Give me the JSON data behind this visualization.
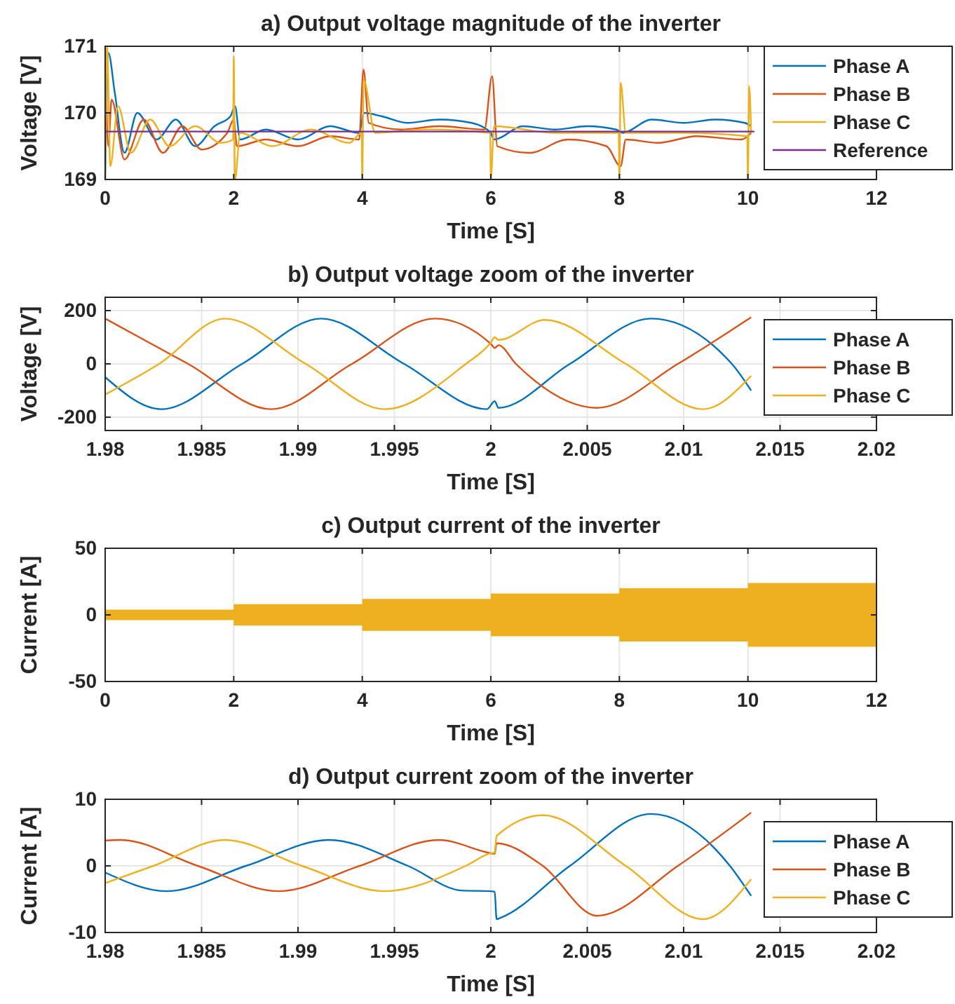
{
  "chart_data": [
    {
      "type": "line",
      "title": "a) Output voltage magnitude of the inverter",
      "xlabel": "Time [S]",
      "ylabel": "Voltage [V]",
      "xlim": [
        0,
        12
      ],
      "xticks": [
        0,
        2,
        4,
        6,
        8,
        10,
        12
      ],
      "ylim": [
        169,
        171
      ],
      "yticks": [
        169,
        170,
        171
      ],
      "grid": true,
      "legend": "top right",
      "series": [
        {
          "name": "Phase A",
          "color": "#0072bd",
          "x": [
            0,
            0.05,
            0.15,
            0.3,
            0.5,
            0.8,
            1.1,
            1.4,
            1.7,
            1.95,
            2.02,
            2.1,
            2.5,
            3.0,
            3.5,
            3.95,
            4.03,
            4.3,
            4.7,
            5.2,
            5.7,
            6.0,
            6.05,
            6.5,
            7.0,
            7.5,
            7.95,
            8.05,
            8.5,
            9.0,
            9.5,
            9.95,
            10.05
          ],
          "values": [
            169.0,
            170.9,
            170.3,
            169.4,
            170.0,
            169.6,
            169.9,
            169.5,
            169.8,
            169.95,
            170.1,
            169.6,
            169.75,
            169.6,
            169.8,
            169.7,
            170.0,
            169.95,
            169.85,
            169.9,
            169.85,
            169.7,
            169.6,
            169.8,
            169.75,
            169.8,
            169.75,
            169.7,
            169.9,
            169.85,
            169.9,
            169.85,
            169.8
          ]
        },
        {
          "name": "Phase B",
          "color": "#d95319",
          "x": [
            0,
            0.05,
            0.1,
            0.3,
            0.6,
            0.9,
            1.2,
            1.5,
            1.9,
            2.0,
            2.05,
            2.5,
            3.0,
            3.5,
            3.95,
            4.02,
            4.1,
            4.6,
            5.2,
            5.9,
            6.02,
            6.1,
            6.6,
            7.2,
            7.8,
            8.02,
            8.1,
            8.6,
            9.2,
            9.9,
            10.05
          ],
          "values": [
            171.0,
            169.5,
            170.2,
            169.3,
            169.9,
            169.4,
            169.8,
            169.45,
            169.7,
            169.9,
            169.5,
            169.6,
            169.5,
            169.65,
            169.6,
            170.65,
            169.85,
            169.75,
            169.8,
            169.75,
            170.55,
            169.5,
            169.4,
            169.6,
            169.5,
            169.2,
            169.6,
            169.55,
            169.65,
            169.6,
            169.7
          ]
        },
        {
          "name": "Phase C",
          "color": "#edb120",
          "x": [
            0,
            0.03,
            0.08,
            0.2,
            0.4,
            0.7,
            1.0,
            1.4,
            1.8,
            1.99,
            2.0,
            2.02,
            2.1,
            2.6,
            3.2,
            3.8,
            3.99,
            4.0,
            4.02,
            4.2,
            5.0,
            5.99,
            6.0,
            6.05,
            7.0,
            7.99,
            8.0,
            8.02,
            8.1,
            9.0,
            9.99,
            10.0,
            10.02,
            10.05
          ],
          "values": [
            169.0,
            171.0,
            169.2,
            170.1,
            169.4,
            169.9,
            169.5,
            169.8,
            169.55,
            169.6,
            170.85,
            169.0,
            169.7,
            169.5,
            169.75,
            169.55,
            169.7,
            169.0,
            170.5,
            169.7,
            169.75,
            169.7,
            169.0,
            169.8,
            169.7,
            169.7,
            169.0,
            170.45,
            169.7,
            169.7,
            169.65,
            169.0,
            170.4,
            169.7
          ]
        },
        {
          "name": "Reference",
          "color": "#7e2f8e",
          "x": [
            0,
            10.1
          ],
          "values": [
            169.72,
            169.72
          ]
        }
      ]
    },
    {
      "type": "line",
      "title": "b) Output voltage zoom of the inverter",
      "xlabel": "Time [S]",
      "ylabel": "Voltage [V]",
      "xlim": [
        1.98,
        2.02
      ],
      "xticks": [
        1.98,
        1.985,
        1.99,
        1.995,
        2,
        2.005,
        2.01,
        2.015,
        2.02
      ],
      "ylim": [
        -250,
        250
      ],
      "yticks": [
        -200,
        0,
        200
      ],
      "grid": true,
      "legend": "right",
      "series": [
        {
          "name": "Phase A",
          "color": "#0072bd",
          "x": [
            1.98,
            1.9829,
            1.9871,
            1.9912,
            1.9955,
            1.9998,
            2.0002,
            2.0004,
            2.0041,
            2.0083,
            2.0125,
            2.0135
          ],
          "values": [
            -50,
            -170,
            0,
            170,
            0,
            -170,
            -140,
            -165,
            0,
            170,
            0,
            -100
          ]
        },
        {
          "name": "Phase B",
          "color": "#d95319",
          "x": [
            1.98,
            1.9843,
            1.9886,
            1.9928,
            1.9971,
            2.0,
            2.0002,
            2.0004,
            2.0013,
            2.0055,
            2.0097,
            2.0135
          ],
          "values": [
            170,
            0,
            -170,
            0,
            170,
            75,
            60,
            70,
            0,
            -165,
            0,
            175
          ]
        },
        {
          "name": "Phase C",
          "color": "#edb120",
          "x": [
            1.98,
            1.9828,
            1.9862,
            1.9904,
            1.9945,
            1.9987,
            2.0,
            2.0002,
            2.0004,
            2.0028,
            2.007,
            2.011,
            2.0135
          ],
          "values": [
            -115,
            0,
            170,
            0,
            -170,
            0,
            80,
            100,
            90,
            165,
            0,
            -170,
            -45
          ]
        }
      ]
    },
    {
      "type": "area",
      "title": "c) Output current of the inverter",
      "xlabel": "Time [S]",
      "ylabel": "Current [A]",
      "xlim": [
        0,
        12
      ],
      "xticks": [
        0,
        2,
        4,
        6,
        8,
        10,
        12
      ],
      "ylim": [
        -50,
        50
      ],
      "yticks": [
        -50,
        0,
        50
      ],
      "grid": true,
      "series": [
        {
          "color": "#edb120",
          "x": [
            0,
            2,
            2,
            4,
            4,
            6,
            6,
            8,
            8,
            10,
            10,
            12
          ],
          "values": [
            4,
            4,
            8,
            8,
            12,
            12,
            16,
            16,
            20,
            20,
            24,
            24
          ]
        },
        {
          "color": "#edb120",
          "x": [
            0,
            2,
            2,
            4,
            4,
            6,
            6,
            8,
            8,
            10,
            10,
            12
          ],
          "values": [
            -4,
            -4,
            -8,
            -8,
            -12,
            -12,
            -16,
            -16,
            -20,
            -20,
            -24,
            -24
          ]
        }
      ]
    },
    {
      "type": "line",
      "title": "d) Output current zoom of the inverter",
      "xlabel": "Time [S]",
      "ylabel": "Current [A]",
      "xlim": [
        1.98,
        2.02
      ],
      "xticks": [
        1.98,
        1.985,
        1.99,
        1.995,
        2,
        2.005,
        2.01,
        2.015,
        2.02
      ],
      "ylim": [
        -10,
        10
      ],
      "yticks": [
        -10,
        0,
        10
      ],
      "grid": true,
      "legend": "right",
      "series": [
        {
          "name": "Phase A",
          "color": "#0072bd",
          "x": [
            1.98,
            1.9832,
            1.9873,
            1.9916,
            1.9957,
            1.9985,
            2.0,
            2.0002,
            2.0003,
            2.0005,
            2.0041,
            2.0083,
            2.0124,
            2.0135
          ],
          "values": [
            -1,
            -3.8,
            0,
            3.9,
            0,
            -3.7,
            -3.8,
            -3.9,
            -8,
            -7.8,
            0,
            7.8,
            0,
            -4.5
          ]
        },
        {
          "name": "Phase B",
          "color": "#d95319",
          "x": [
            1.98,
            1.9808,
            1.9848,
            1.989,
            1.9932,
            1.9973,
            2.0,
            2.0002,
            2.0003,
            2.0027,
            2.0055,
            2.0097,
            2.0135
          ],
          "values": [
            3.8,
            3.9,
            0,
            -3.8,
            0,
            3.9,
            1.9,
            1.8,
            3.4,
            0,
            -7.5,
            0,
            8.0
          ]
        },
        {
          "name": "Phase C",
          "color": "#edb120",
          "x": [
            1.98,
            1.9825,
            1.9862,
            1.9902,
            1.9945,
            1.9987,
            2.0,
            2.0002,
            2.0003,
            2.0027,
            2.007,
            2.011,
            2.0135
          ],
          "values": [
            -2.6,
            0,
            3.9,
            0,
            -3.8,
            0,
            1.9,
            2.0,
            4.5,
            7.6,
            0,
            -8.0,
            -2.0
          ]
        }
      ]
    }
  ]
}
